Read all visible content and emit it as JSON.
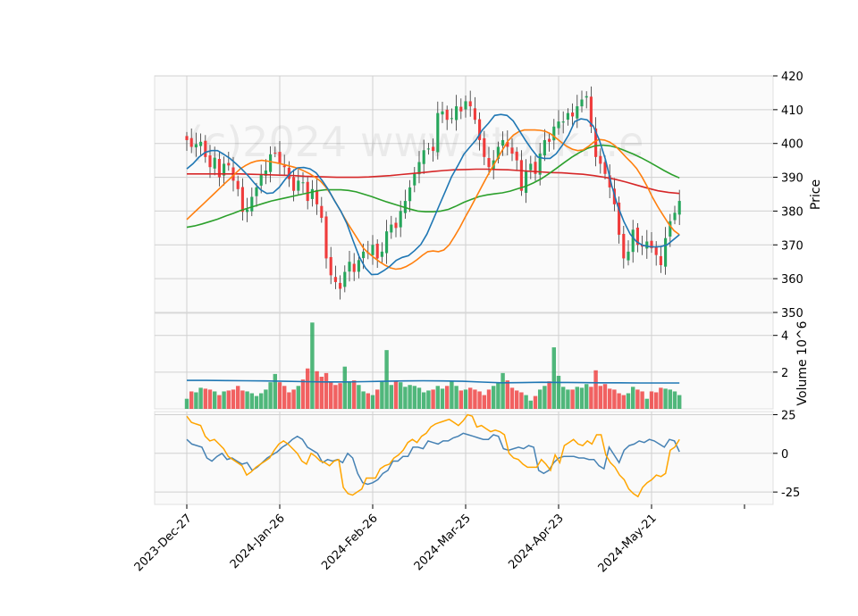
{
  "chart_data": {
    "type": "candlestick",
    "watermark": "(c)2024 www.stock...e",
    "x_tick_labels": [
      "2023-Dec-27",
      "2024-Jan-26",
      "2024-Feb-26",
      "2024-Mar-25",
      "2024-Apr-23",
      "2024-May-21"
    ],
    "x_tick_index": [
      0,
      20,
      40,
      60,
      80,
      100
    ],
    "colors": {
      "up": "#26a65b",
      "down": "#ef3b3b",
      "ma_short": "#1f77b4",
      "ma_mid": "#ff7f0e",
      "ma_long": "#2ca02c",
      "ma_200": "#d62728",
      "vol_ma": "#1f77b4",
      "osc_blue": "#4682b4",
      "osc_orange": "#ffa500"
    },
    "price": {
      "ylabel": "Price",
      "ylim": [
        350,
        420
      ],
      "yticks": [
        350,
        360,
        370,
        380,
        390,
        400,
        410,
        420
      ],
      "close": [
        401.0,
        399.0,
        399.8,
        400.5,
        396.0,
        393.0,
        395.8,
        390.0,
        394.0,
        393.5,
        389.0,
        386.5,
        379.8,
        380.5,
        384.2,
        387.0,
        390.8,
        392.0,
        396.8,
        397.2,
        394.0,
        393.0,
        389.5,
        386.0,
        389.0,
        388.5,
        383.0,
        386.5,
        382.0,
        378.0,
        366.0,
        361.0,
        359.0,
        357.0,
        362.0,
        365.0,
        362.0,
        365.5,
        368.0,
        367.5,
        370.0,
        366.0,
        368.0,
        374.0,
        376.0,
        375.0,
        380.0,
        383.0,
        387.0,
        391.0,
        394.5,
        398.0,
        398.5,
        397.8,
        409.0,
        409.5,
        407.0,
        407.5,
        411.0,
        409.5,
        412.5,
        411.0,
        407.0,
        401.0,
        396.0,
        393.0,
        395.0,
        399.0,
        401.0,
        399.0,
        397.0,
        395.0,
        386.0,
        392.0,
        394.0,
        391.0,
        397.0,
        401.0,
        400.5,
        405.0,
        406.5,
        406.5,
        409.0,
        408.0,
        411.0,
        413.0,
        414.0,
        405.0,
        396.0,
        394.0,
        391.0,
        387.0,
        382.0,
        373.0,
        366.0,
        368.0,
        374.5,
        370.0,
        369.5,
        371.0,
        369.0,
        367.0,
        364.0,
        372.0,
        377.0,
        379.5,
        383.0
      ],
      "ma_short": [
        392.5,
        394.0,
        396.0,
        397.4,
        397.9,
        397.9,
        396.8,
        395.6,
        394.0,
        392.3,
        390.4,
        388.2,
        386.3,
        385.2,
        385.4,
        387.0,
        389.4,
        391.5,
        392.8,
        392.9,
        392.5,
        391.3,
        389.0,
        386.3,
        383.0,
        380.0,
        376.3,
        371.3,
        366.5,
        363.2,
        361.2,
        361.3,
        362.4,
        363.7,
        365.4,
        366.3,
        366.8,
        368.3,
        370.1,
        373.2,
        377.4,
        381.7,
        385.9,
        390.2,
        393.4,
        396.8,
        399.0,
        401.1,
        404.0,
        406.0,
        408.3,
        408.6,
        408.3,
        406.7,
        403.8,
        400.9,
        398.3,
        396.0,
        395.6,
        395.6,
        397.0,
        399.5,
        402.5,
        406.5,
        407.3,
        407.0,
        405.2,
        401.0,
        395.2,
        387.6,
        381.4,
        376.8,
        373.2,
        371.0,
        369.9,
        369.5,
        369.4,
        369.5,
        370.0,
        371.5,
        373.0
      ],
      "ma_short_start": 0,
      "ma_mid": [
        377.5,
        379.0,
        380.5,
        382.0,
        383.5,
        385.0,
        386.5,
        388.0,
        389.5,
        391.0,
        392.5,
        393.5,
        394.3,
        394.8,
        395.0,
        394.8,
        394.5,
        394.2,
        393.8,
        393.4,
        393.0,
        392.5,
        391.8,
        391.0,
        390.0,
        388.8,
        387.0,
        384.7,
        382.0,
        379.3,
        376.5,
        374.0,
        371.5,
        369.0,
        367.5,
        366.2,
        365.0,
        364.0,
        363.2,
        362.8,
        363.0,
        363.6,
        364.5,
        365.6,
        366.9,
        368.0,
        368.2,
        368.0,
        368.5,
        370.0,
        372.5,
        375.2,
        378.2,
        381.0,
        384.0,
        387.0,
        390.0,
        392.8,
        395.5,
        398.2,
        400.8,
        402.5,
        403.5,
        404.0,
        404.0,
        404.0,
        403.9,
        403.6,
        402.8,
        401.6,
        400.3,
        399.1,
        398.3,
        397.9,
        398.1,
        399.1,
        400.4,
        401.2,
        401.0,
        400.4,
        399.3,
        397.7,
        396.0,
        394.4,
        392.6,
        390.1,
        387.2,
        384.0,
        381.2,
        378.7,
        376.2,
        374.2,
        373.0
      ],
      "ma_long": [
        375.2,
        375.6,
        376.2,
        376.9,
        377.6,
        378.5,
        379.3,
        380.2,
        380.9,
        381.6,
        382.3,
        383.0,
        383.5,
        384.0,
        384.5,
        385.0,
        385.5,
        386.0,
        386.3,
        386.3,
        386.3,
        386.1,
        385.7,
        385.0,
        384.3,
        383.5,
        382.7,
        382.0,
        381.3,
        380.6,
        380.0,
        379.8,
        379.8,
        380.0,
        380.5,
        381.5,
        382.6,
        383.5,
        384.3,
        384.8,
        385.1,
        385.4,
        385.9,
        386.6,
        387.3,
        388.3,
        389.5,
        391.0,
        392.6,
        394.3,
        395.9,
        397.3,
        398.5,
        399.3,
        399.5,
        399.3,
        398.7,
        397.8,
        396.9,
        395.8,
        394.6,
        393.3,
        392.0,
        390.8,
        389.8
      ],
      "ma_200": [
        391.0,
        391.0,
        391.0,
        391.0,
        391.0,
        391.0,
        390.9,
        390.8,
        390.7,
        390.6,
        390.5,
        390.3,
        390.2,
        390.1,
        390.0,
        390.0,
        390.0,
        390.1,
        390.3,
        390.5,
        390.8,
        391.1,
        391.4,
        391.7,
        392.0,
        392.2,
        392.3,
        392.4,
        392.4,
        392.3,
        392.2,
        392.0,
        391.8,
        391.6,
        391.4,
        391.3,
        391.1,
        390.9,
        390.5,
        390.0,
        389.4,
        388.6,
        387.7,
        386.8,
        386.0,
        385.5,
        385.2
      ]
    },
    "volume": {
      "ylabel": "Volume  10^6",
      "yticks": [
        2,
        4
      ],
      "values": [
        0.55,
        0.95,
        0.9,
        1.15,
        1.1,
        1.05,
        0.95,
        0.75,
        0.95,
        1.0,
        1.05,
        1.25,
        1.0,
        0.95,
        0.85,
        0.7,
        0.85,
        1.05,
        1.45,
        1.9,
        1.45,
        1.25,
        0.9,
        1.05,
        1.25,
        1.6,
        2.2,
        4.7,
        2.05,
        1.75,
        1.95,
        1.45,
        1.3,
        1.4,
        2.3,
        1.5,
        1.55,
        1.3,
        0.95,
        0.85,
        0.75,
        1.05,
        1.5,
        3.2,
        1.3,
        1.5,
        1.45,
        1.2,
        1.3,
        1.25,
        1.15,
        0.9,
        1.0,
        1.05,
        1.25,
        1.1,
        1.25,
        1.5,
        1.25,
        1.0,
        1.05,
        1.15,
        1.05,
        0.95,
        0.75,
        1.05,
        1.25,
        1.45,
        1.95,
        1.55,
        1.15,
        1.0,
        0.9,
        0.75,
        0.45,
        0.7,
        1.05,
        1.25,
        1.5,
        3.35,
        1.8,
        1.2,
        1.05,
        1.05,
        1.2,
        1.15,
        1.35,
        1.2,
        2.1,
        1.25,
        1.35,
        1.1,
        1.05,
        0.85,
        0.75,
        0.85,
        1.2,
        1.05,
        0.95
      ],
      "ma": [
        1.55,
        1.55,
        1.54,
        1.53,
        1.52,
        1.5,
        1.48,
        1.47,
        1.47,
        1.48,
        1.5,
        1.52,
        1.53,
        1.52,
        1.5,
        1.46,
        1.42,
        1.43,
        1.45,
        1.44,
        1.43,
        1.42,
        1.42,
        1.41,
        1.41,
        1.41
      ],
      "ylim": [
        0,
        5.2
      ]
    },
    "oscillator": {
      "yticks": [
        -25,
        0,
        25
      ],
      "ylim": [
        -33,
        27
      ],
      "blue": [
        9,
        6,
        5,
        4,
        -3,
        -5,
        -2,
        0,
        -4,
        -3,
        -5,
        -7,
        -6,
        -11,
        -9,
        -6,
        -3,
        -1,
        1,
        4,
        6,
        9,
        11,
        9,
        4,
        2,
        0,
        -6,
        -4,
        -5,
        -4,
        -6,
        0,
        -3,
        -13,
        -19,
        -20,
        -19,
        -17,
        -13,
        -11,
        -5,
        -5,
        -2,
        -2,
        4,
        4,
        3,
        8,
        7,
        6,
        8,
        8,
        10,
        11,
        13,
        12,
        11,
        10,
        9,
        9,
        12,
        11,
        3,
        2,
        3,
        4,
        3,
        5,
        4,
        -11,
        -13,
        -11,
        -6,
        -3,
        -2,
        -2,
        -2,
        -3,
        -3,
        -4,
        -4,
        -8,
        -10,
        4,
        -1,
        -6,
        2,
        5,
        6,
        8,
        7,
        9,
        8,
        6,
        4,
        9,
        8,
        1
      ],
      "orange": [
        24,
        20,
        19,
        18,
        11,
        8,
        9,
        6,
        3,
        -2,
        -4,
        -6,
        -8,
        -14,
        -12,
        -9,
        -7,
        -5,
        -3,
        2,
        6,
        8,
        6,
        3,
        0,
        -5,
        -7,
        0,
        -2,
        -5,
        -6,
        -8,
        -5,
        -4,
        -22,
        -26,
        -27,
        -25,
        -23,
        -16,
        -16,
        -16,
        -10,
        -8,
        -7,
        -3,
        -1,
        2,
        7,
        9,
        7,
        11,
        13,
        17,
        19,
        20,
        21,
        22,
        20,
        18,
        21,
        25,
        24,
        17,
        18,
        16,
        14,
        15,
        14,
        12,
        0,
        -3,
        -4,
        -7,
        -9,
        -9,
        -9,
        -4,
        -7,
        -11,
        -1,
        -6,
        5,
        7,
        9,
        6,
        5,
        8,
        6,
        12,
        12,
        -1,
        -6,
        -9,
        -14,
        -17,
        -23,
        -26,
        -28,
        -22,
        -19,
        -17,
        -14,
        -15,
        -13,
        2,
        4,
        9
      ]
    }
  }
}
